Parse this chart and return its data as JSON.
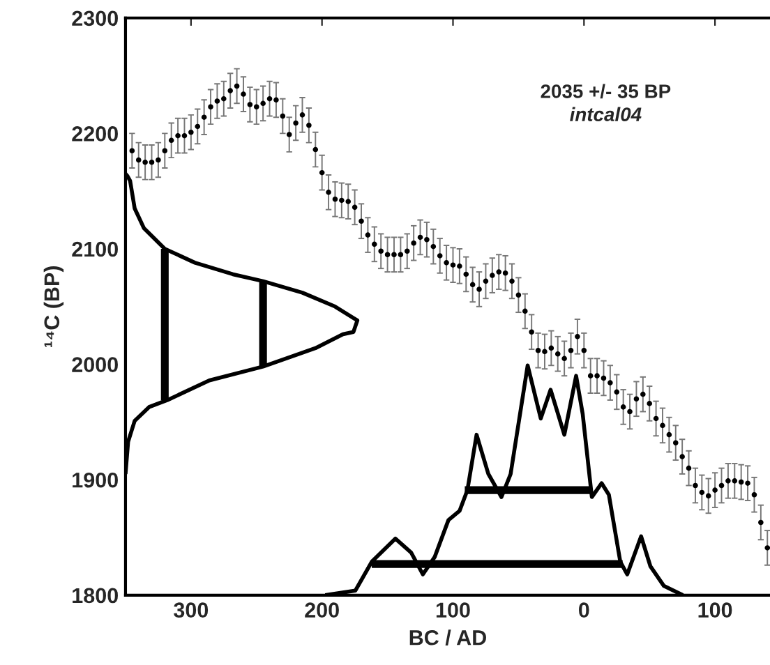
{
  "chart_data": {
    "type": "scatter",
    "xlabel": "BC / AD",
    "ylabel": "¹⁴C (BP)",
    "annotations": [
      "2035 +/- 35 BP",
      "intcal04"
    ],
    "xlim": [
      -350,
      142
    ],
    "ylim": [
      1800,
      2300
    ],
    "xticks": [
      {
        "value": -300,
        "label": "300"
      },
      {
        "value": -200,
        "label": "200"
      },
      {
        "value": -100,
        "label": "100"
      },
      0,
      100
    ],
    "yticks": [
      1800,
      1900,
      2000,
      2100,
      2200,
      2300
    ],
    "grid": false,
    "legend": false,
    "series": [
      {
        "color": "#000000",
        "marker": "circle",
        "x": [
          -345,
          -340,
          -335,
          -330,
          -325,
          -320,
          -315,
          -310,
          -305,
          -300,
          -295,
          -290,
          -285,
          -280,
          -275,
          -270,
          -265,
          -260,
          -255,
          -250,
          -245,
          -240,
          -235,
          -230,
          -225,
          -220,
          -215,
          -210,
          -205,
          -200,
          -195,
          -190,
          -185,
          -180,
          -175,
          -170,
          -165,
          -160,
          -155,
          -150,
          -145,
          -140,
          -135,
          -130,
          -125,
          -120,
          -115,
          -110,
          -105,
          -100,
          -95,
          -90,
          -85,
          -80,
          -75,
          -70,
          -65,
          -60,
          -55,
          -50,
          -45,
          -40,
          -35,
          -30,
          -25,
          -20,
          -15,
          -10,
          -5,
          0,
          5,
          10,
          15,
          20,
          25,
          30,
          35,
          40,
          45,
          50,
          55,
          60,
          65,
          70,
          75,
          80,
          85,
          90,
          95,
          100,
          105,
          110,
          115,
          120,
          125,
          130,
          135,
          140
        ],
        "values": [
          2185,
          2177,
          2175,
          2175,
          2177,
          2185,
          2194,
          2198,
          2198,
          2201,
          2206,
          2214,
          2223,
          2228,
          2230,
          2237,
          2241,
          2234,
          2225,
          2223,
          2226,
          2230,
          2229,
          2215,
          2199,
          2209,
          2216,
          2207,
          2186,
          2166,
          2149,
          2143,
          2142,
          2141,
          2136,
          2124,
          2112,
          2104,
          2098,
          2095,
          2095,
          2095,
          2098,
          2105,
          2110,
          2108,
          2102,
          2094,
          2088,
          2086,
          2085,
          2078,
          2069,
          2065,
          2072,
          2077,
          2080,
          2079,
          2072,
          2060,
          2046,
          2028,
          2012,
          2011,
          2014,
          2009,
          2005,
          2012,
          2024,
          2012,
          1990,
          1990,
          1988,
          1984,
          1976,
          1963,
          1959,
          1970,
          1974,
          1966,
          1953,
          1947,
          1939,
          1932,
          1920,
          1910,
          1895,
          1889,
          1886,
          1891,
          1895,
          1899,
          1899,
          1898,
          1897,
          1887,
          1863,
          1841
        ],
        "errors": [
          15,
          15,
          15,
          15,
          15,
          15,
          15,
          15,
          15,
          15,
          15,
          15,
          15,
          15,
          15,
          15,
          15,
          15,
          15,
          15,
          15,
          15,
          15,
          15,
          15,
          15,
          15,
          15,
          15,
          15,
          15,
          15,
          15,
          15,
          15,
          15,
          15,
          15,
          15,
          15,
          15,
          15,
          15,
          15,
          15,
          15,
          15,
          15,
          15,
          15,
          15,
          15,
          15,
          15,
          15,
          15,
          15,
          15,
          15,
          15,
          15,
          15,
          15,
          15,
          15,
          15,
          15,
          15,
          15,
          15,
          15,
          15,
          15,
          15,
          15,
          15,
          15,
          15,
          15,
          15,
          15,
          15,
          15,
          15,
          15,
          15,
          15,
          15,
          15,
          15,
          15,
          15,
          15,
          15,
          15,
          15,
          15,
          15
        ]
      },
      {
        "type": "line",
        "color": "#000000",
        "x": [
          -350,
          -348.5,
          -346.5,
          -343,
          -336,
          -320,
          -297,
          -268,
          -245,
          -215,
          -190,
          -173,
          -176,
          -184,
          -205,
          -245,
          -286,
          -318,
          -332,
          -343,
          -348,
          -350
        ],
        "values": [
          2165,
          2163,
          2159,
          2135,
          2118,
          2100,
          2088,
          2078,
          2072,
          2062,
          2050,
          2038,
          2028,
          2026,
          2014,
          1998,
          1986,
          1969,
          1963,
          1951,
          1933,
          1905
        ]
      },
      {
        "type": "line",
        "color": "#000000",
        "x": [
          -320,
          -320
        ],
        "values": [
          2100,
          1969
        ]
      },
      {
        "type": "line",
        "color": "#000000",
        "x": [
          -245,
          -245
        ],
        "values": [
          2072,
          1998
        ]
      },
      {
        "type": "line",
        "color": "#000000",
        "x": [
          -197.5,
          -174.5,
          -162,
          -144,
          -132,
          -123,
          -114,
          -103.5,
          -95,
          -89,
          -82,
          -73,
          -63,
          -56,
          -43,
          -33,
          -25.5,
          -15,
          -6,
          -1,
          6,
          13.5,
          19,
          27.7,
          33,
          43.6,
          50.7,
          61,
          75.5
        ],
        "values": [
          1800,
          1804,
          1829,
          1849,
          1837,
          1818,
          1833,
          1865,
          1873,
          1891,
          1939,
          1905,
          1885,
          1905,
          1999,
          1953,
          1978,
          1939,
          1990,
          1957,
          1885,
          1897,
          1887,
          1829,
          1818,
          1851,
          1825,
          1808,
          1800
        ]
      },
      {
        "type": "line",
        "color": "#000000",
        "x": [
          -91,
          5
        ],
        "values": [
          1891,
          1891
        ]
      },
      {
        "type": "line",
        "color": "#000000",
        "x": [
          -162,
          29.5
        ],
        "values": [
          1827,
          1827
        ]
      }
    ]
  }
}
